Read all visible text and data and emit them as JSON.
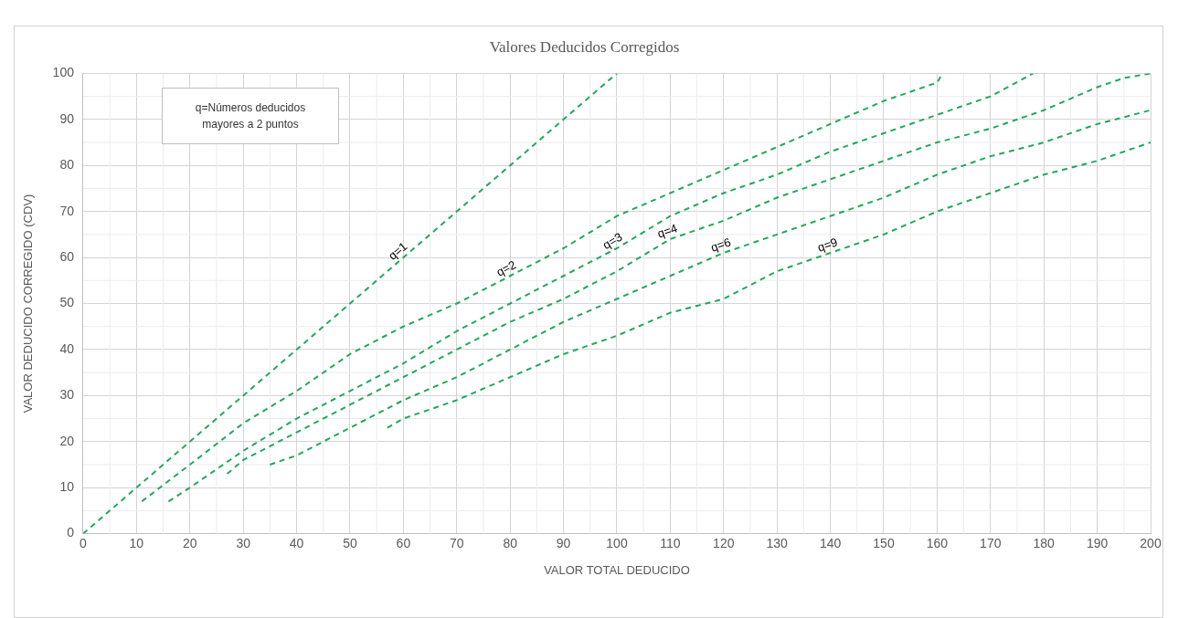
{
  "chart_data": {
    "type": "line",
    "title": "Valores Deducidos Corregidos",
    "xlabel": "VALOR TOTAL DEDUCIDO",
    "ylabel": "VALOR DEDUCIDO CORREGIDO (CDV)",
    "xlim": [
      0,
      200
    ],
    "ylim": [
      0,
      100
    ],
    "xticks": [
      0,
      10,
      20,
      30,
      40,
      50,
      60,
      70,
      80,
      90,
      100,
      110,
      120,
      130,
      140,
      150,
      160,
      170,
      180,
      190,
      200
    ],
    "yticks": [
      0,
      10,
      20,
      30,
      40,
      50,
      60,
      70,
      80,
      90,
      100
    ],
    "grid": true,
    "legend": false,
    "marker": "none",
    "line_style": "dashed",
    "series": [
      {
        "color": "#22a85a",
        "x": [
          0,
          100
        ],
        "values": [
          0,
          100
        ]
      },
      {
        "color": "#22a85a",
        "x": [
          11,
          20,
          30,
          40,
          50,
          60,
          70,
          80,
          90,
          100,
          110,
          120,
          130,
          140,
          150,
          160,
          161
        ],
        "values": [
          7,
          15,
          24,
          31,
          39,
          45,
          50,
          56,
          62,
          69,
          74,
          79,
          84,
          89,
          94,
          98,
          100
        ]
      },
      {
        "color": "#22a85a",
        "x": [
          16,
          20,
          30,
          40,
          50,
          60,
          70,
          80,
          90,
          100,
          110,
          120,
          130,
          140,
          150,
          160,
          170,
          178
        ],
        "values": [
          7,
          10,
          18,
          25,
          31,
          37,
          44,
          50,
          56,
          62,
          69,
          74,
          78,
          83,
          87,
          91,
          95,
          100
        ]
      },
      {
        "color": "#22a85a",
        "x": [
          27,
          30,
          40,
          50,
          60,
          70,
          80,
          90,
          100,
          110,
          120,
          130,
          140,
          150,
          160,
          170,
          180,
          190,
          195,
          200
        ],
        "values": [
          13,
          16,
          22,
          28,
          34,
          40,
          46,
          51,
          57,
          64,
          68,
          73,
          77,
          81,
          85,
          88,
          92,
          97,
          99,
          100
        ]
      },
      {
        "color": "#22a85a",
        "x": [
          35,
          40,
          50,
          60,
          70,
          80,
          90,
          100,
          110,
          120,
          130,
          140,
          150,
          160,
          170,
          180,
          190,
          200
        ],
        "values": [
          15,
          17,
          23,
          29,
          34,
          40,
          46,
          51,
          56,
          61,
          65,
          69,
          73,
          78,
          82,
          85,
          89,
          92
        ]
      },
      {
        "color": "#22a85a",
        "x": [
          57,
          60,
          70,
          80,
          90,
          100,
          110,
          120,
          130,
          140,
          150,
          160,
          170,
          180,
          190,
          200
        ],
        "values": [
          23,
          25,
          29,
          34,
          39,
          43,
          48,
          51,
          57,
          61,
          65,
          70,
          74,
          78,
          81,
          85
        ]
      }
    ],
    "annotations": [
      "q=Números deducidos mayores a 2 puntos",
      {
        "text": "q=1",
        "x": 60,
        "y": 60
      },
      {
        "text": "q=2",
        "x": 80,
        "y": 56
      },
      {
        "text": "q=3",
        "x": 100,
        "y": 62
      },
      {
        "text": "q=4",
        "x": 110,
        "y": 64
      },
      {
        "text": "q=6",
        "x": 120,
        "y": 61
      },
      {
        "text": "q=9",
        "x": 140,
        "y": 61
      }
    ]
  }
}
